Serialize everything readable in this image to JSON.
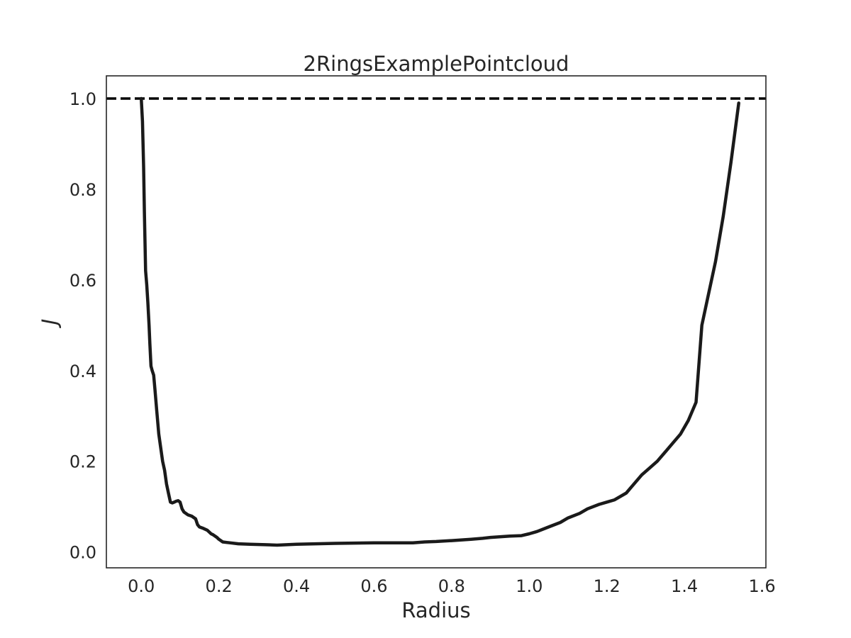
{
  "chart_data": {
    "type": "line",
    "title": "2RingsExamplePointcloud",
    "xlabel": "Radius",
    "ylabel": "J",
    "xlim": [
      -0.09,
      1.61
    ],
    "ylim": [
      -0.035,
      1.05
    ],
    "xticks": [
      0.0,
      0.2,
      0.4,
      0.6,
      0.8,
      1.0,
      1.2,
      1.4,
      1.6
    ],
    "xtick_labels": [
      "0.0",
      "0.2",
      "0.4",
      "0.6",
      "0.8",
      "1.0",
      "1.2",
      "1.4",
      "1.6"
    ],
    "yticks": [
      0.0,
      0.2,
      0.4,
      0.6,
      0.8,
      1.0
    ],
    "ytick_labels": [
      "0.0",
      "0.2",
      "0.4",
      "0.6",
      "0.8",
      "1.0"
    ],
    "grid": false,
    "reference_line": {
      "y": 1.0,
      "style": "dashed",
      "color": "#000000"
    },
    "series": [
      {
        "color": "#1a1a1a",
        "x": [
          0.0,
          0.003,
          0.006,
          0.008,
          0.011,
          0.014,
          0.017,
          0.02,
          0.022,
          0.025,
          0.028,
          0.032,
          0.035,
          0.04,
          0.045,
          0.05,
          0.055,
          0.06,
          0.065,
          0.07,
          0.075,
          0.08,
          0.085,
          0.09,
          0.095,
          0.1,
          0.105,
          0.11,
          0.12,
          0.13,
          0.14,
          0.145,
          0.15,
          0.16,
          0.17,
          0.18,
          0.185,
          0.195,
          0.2,
          0.21,
          0.22,
          0.23,
          0.25,
          0.28,
          0.32,
          0.35,
          0.4,
          0.5,
          0.6,
          0.7,
          0.73,
          0.76,
          0.8,
          0.85,
          0.88,
          0.9,
          0.95,
          0.98,
          1.0,
          1.02,
          1.05,
          1.08,
          1.1,
          1.13,
          1.15,
          1.18,
          1.2,
          1.22,
          1.25,
          1.27,
          1.29,
          1.31,
          1.33,
          1.35,
          1.37,
          1.39,
          1.41,
          1.43,
          1.445,
          1.46,
          1.48,
          1.5,
          1.52,
          1.54
        ],
        "y": [
          1.0,
          0.95,
          0.85,
          0.75,
          0.62,
          0.59,
          0.55,
          0.5,
          0.46,
          0.41,
          0.4,
          0.39,
          0.36,
          0.31,
          0.26,
          0.23,
          0.2,
          0.18,
          0.15,
          0.13,
          0.11,
          0.108,
          0.11,
          0.112,
          0.113,
          0.11,
          0.095,
          0.088,
          0.082,
          0.079,
          0.073,
          0.06,
          0.055,
          0.052,
          0.048,
          0.04,
          0.038,
          0.032,
          0.028,
          0.022,
          0.021,
          0.02,
          0.018,
          0.017,
          0.016,
          0.015,
          0.017,
          0.019,
          0.02,
          0.02,
          0.022,
          0.023,
          0.025,
          0.028,
          0.03,
          0.032,
          0.035,
          0.036,
          0.04,
          0.045,
          0.055,
          0.065,
          0.075,
          0.085,
          0.095,
          0.105,
          0.11,
          0.115,
          0.13,
          0.15,
          0.17,
          0.185,
          0.2,
          0.22,
          0.24,
          0.26,
          0.29,
          0.33,
          0.5,
          0.56,
          0.64,
          0.74,
          0.86,
          0.99
        ]
      }
    ]
  }
}
